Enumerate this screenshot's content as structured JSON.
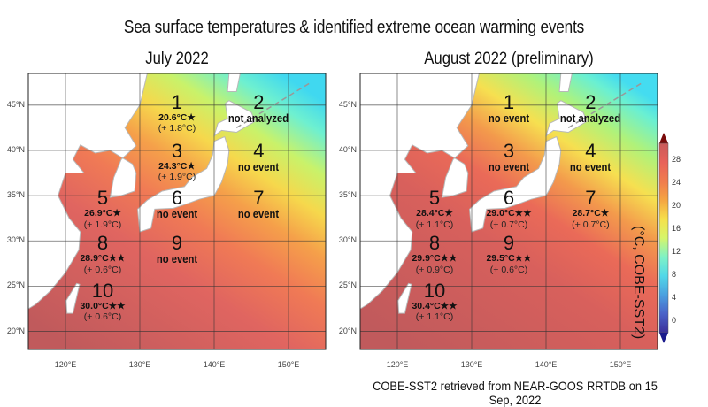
{
  "title": "Sea surface temperatures & identified extreme ocean warming events",
  "credit": "COBE-SST2 retrieved from NEAR-GOOS RRTDB on 15 Sep, 2022",
  "axes": {
    "lat_labels": [
      "45°N",
      "40°N",
      "35°N",
      "30°N",
      "25°N",
      "20°N"
    ],
    "lon_labels": [
      "120°E",
      "130°E",
      "140°E",
      "150°E"
    ],
    "lat_range": [
      18,
      48.5
    ],
    "lon_range": [
      115,
      155
    ]
  },
  "colorbar": {
    "label": "(°C, COBE-SST2)",
    "ticks": [
      "0",
      "4",
      "8",
      "12",
      "16",
      "20",
      "24",
      "28"
    ],
    "range": [
      -2,
      31
    ],
    "colors": [
      "#3b2f9a",
      "#4a62c8",
      "#4aa0e0",
      "#52d8e8",
      "#7ef2c6",
      "#d6f56a",
      "#f6e04a",
      "#f5a542",
      "#f07c4e",
      "#e8625a",
      "#c95a5a"
    ],
    "extend_low_color": "#1a1a8c",
    "extend_high_color": "#7a0a0a"
  },
  "panels": [
    {
      "title": "July 2022",
      "regions": [
        {
          "num": "1",
          "status": "",
          "temp": "20.6°C★",
          "anom": "(+ 1.8°C)"
        },
        {
          "num": "2",
          "status": "not analyzed",
          "temp": "",
          "anom": ""
        },
        {
          "num": "3",
          "status": "",
          "temp": "24.3°C★",
          "anom": "(+ 1.9°C)"
        },
        {
          "num": "4",
          "status": "no event",
          "temp": "",
          "anom": ""
        },
        {
          "num": "5",
          "status": "",
          "temp": "26.9°C★",
          "anom": "(+ 1.9°C)"
        },
        {
          "num": "6",
          "status": "no event",
          "temp": "",
          "anom": ""
        },
        {
          "num": "7",
          "status": "no event",
          "temp": "",
          "anom": ""
        },
        {
          "num": "8",
          "status": "",
          "temp": "28.9°C★★",
          "anom": "(+ 0.6°C)"
        },
        {
          "num": "9",
          "status": "no event",
          "temp": "",
          "anom": ""
        },
        {
          "num": "10",
          "status": "",
          "temp": "30.0°C★★",
          "anom": "(+ 0.6°C)"
        }
      ]
    },
    {
      "title": "August 2022 (preliminary)",
      "regions": [
        {
          "num": "1",
          "status": "no event",
          "temp": "",
          "anom": ""
        },
        {
          "num": "2",
          "status": "not analyzed",
          "temp": "",
          "anom": ""
        },
        {
          "num": "3",
          "status": "no event",
          "temp": "",
          "anom": ""
        },
        {
          "num": "4",
          "status": "no event",
          "temp": "",
          "anom": ""
        },
        {
          "num": "5",
          "status": "",
          "temp": "28.4°C★",
          "anom": "(+ 1.1°C)"
        },
        {
          "num": "6",
          "status": "",
          "temp": "29.0°C★★",
          "anom": "(+ 0.7°C)"
        },
        {
          "num": "7",
          "status": "",
          "temp": "28.7°C★",
          "anom": "(+ 0.7°C)"
        },
        {
          "num": "8",
          "status": "",
          "temp": "29.9°C★★",
          "anom": "(+ 0.9°C)"
        },
        {
          "num": "9",
          "status": "",
          "temp": "29.5°C★★",
          "anom": "(+ 0.6°C)"
        },
        {
          "num": "10",
          "status": "",
          "temp": "30.4°C★★",
          "anom": "(+ 1.1°C)"
        }
      ]
    }
  ]
}
